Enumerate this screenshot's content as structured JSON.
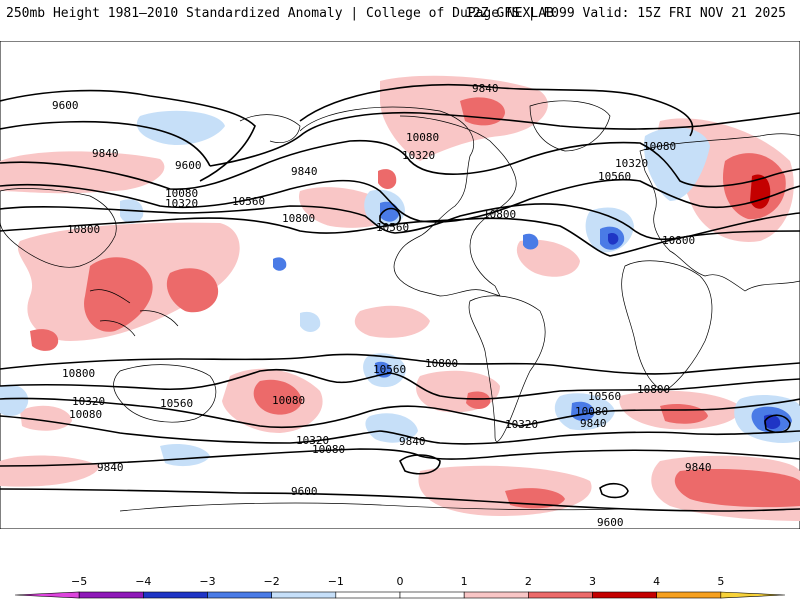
{
  "header": {
    "title": "250mb Height 1981–2010 Standardized Anomaly | College of DuPage NEXLAB",
    "run_info": "12Z GFS | F099 Valid: 15Z FRI NOV 21 2025"
  },
  "map": {
    "contour_labels": [
      {
        "id": "c01",
        "text": "9840"
      },
      {
        "id": "c02",
        "text": "9600"
      },
      {
        "id": "c03",
        "text": "9840"
      },
      {
        "id": "c04",
        "text": "9600"
      },
      {
        "id": "c05",
        "text": "10080"
      },
      {
        "id": "c06",
        "text": "10320"
      },
      {
        "id": "c07",
        "text": "10560"
      },
      {
        "id": "c08",
        "text": "10800"
      },
      {
        "id": "c09",
        "text": "9840"
      },
      {
        "id": "c10",
        "text": "10080"
      },
      {
        "id": "c11",
        "text": "10320"
      },
      {
        "id": "c12",
        "text": "10560"
      },
      {
        "id": "c13",
        "text": "10800"
      },
      {
        "id": "c14",
        "text": "10080"
      },
      {
        "id": "c15",
        "text": "10320"
      },
      {
        "id": "c16",
        "text": "10560"
      },
      {
        "id": "c17",
        "text": "10800"
      },
      {
        "id": "c18",
        "text": "10800"
      },
      {
        "id": "c19",
        "text": "10320"
      },
      {
        "id": "c20",
        "text": "10080"
      },
      {
        "id": "c21",
        "text": "10560"
      },
      {
        "id": "c22",
        "text": "10800"
      },
      {
        "id": "c23",
        "text": "10320"
      },
      {
        "id": "c24",
        "text": "10080"
      },
      {
        "id": "c25",
        "text": "10560"
      },
      {
        "id": "c26",
        "text": "10800"
      },
      {
        "id": "c27",
        "text": "10320"
      },
      {
        "id": "c28",
        "text": "10080"
      },
      {
        "id": "c29",
        "text": "9840"
      },
      {
        "id": "c30",
        "text": "10800"
      },
      {
        "id": "c31",
        "text": "10560"
      },
      {
        "id": "c32",
        "text": "10080"
      },
      {
        "id": "c33",
        "text": "9840"
      },
      {
        "id": "c34",
        "text": "10320"
      },
      {
        "id": "c35",
        "text": "9840"
      },
      {
        "id": "c36",
        "text": "9840"
      },
      {
        "id": "c37",
        "text": "9600"
      },
      {
        "id": "c38",
        "text": "9600"
      }
    ]
  },
  "colorbar": {
    "ticks": [
      "−5",
      "−4",
      "−3",
      "−2",
      "−1",
      "0",
      "1",
      "2",
      "3",
      "4",
      "5"
    ],
    "colors": [
      "#dd44dd",
      "#8e18b8",
      "#1f35c5",
      "#4a7be6",
      "#c6dff8",
      "#ffffff",
      "#ffffff",
      "#f9c6c6",
      "#ec6a6a",
      "#c40000",
      "#f5a020",
      "#f7d23a"
    ]
  }
}
